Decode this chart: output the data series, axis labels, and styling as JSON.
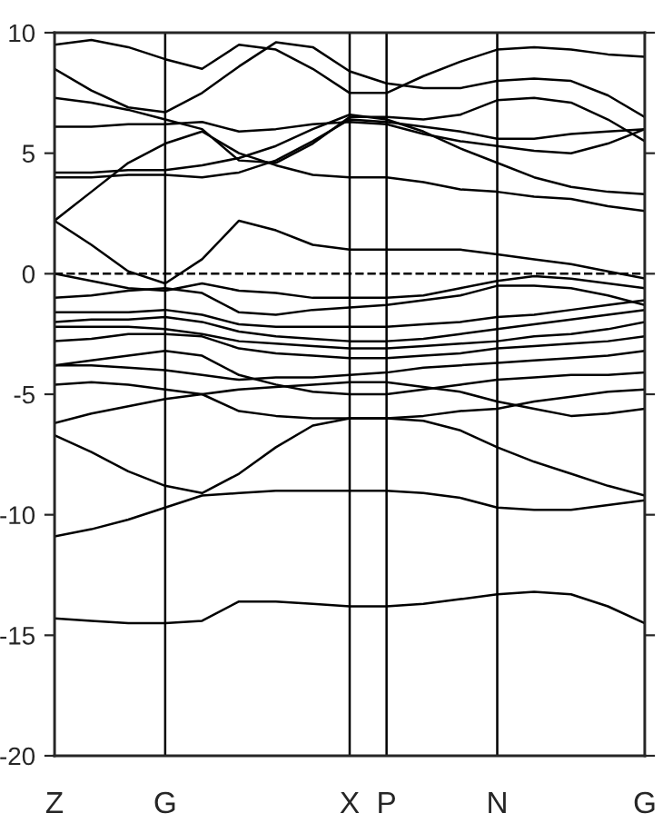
{
  "chart_data": {
    "type": "line",
    "categories": [
      "Z",
      null,
      null,
      "G",
      null,
      null,
      null,
      null,
      "X",
      "P",
      null,
      null,
      "N",
      null,
      null,
      null,
      "G"
    ],
    "ylim": [
      -20,
      10
    ],
    "yticks": [
      -20,
      -15,
      -10,
      -5,
      0,
      5,
      10
    ],
    "grid": "x",
    "ref_lines": [
      {
        "axis": "y",
        "value": 0,
        "color": "#000000",
        "line_style": "dashed"
      }
    ],
    "series": [
      {
        "color": "#000000",
        "values": [
          -14.3,
          -14.4,
          -14.5,
          -14.5,
          -14.4,
          -13.6,
          -13.6,
          -13.7,
          -13.8,
          -13.8,
          -13.7,
          -13.5,
          -13.3,
          -13.2,
          -13.3,
          -13.8,
          -14.5
        ]
      },
      {
        "color": "#000000",
        "values": [
          -10.9,
          -10.6,
          -10.2,
          -9.7,
          -9.2,
          -9.1,
          -9.0,
          -9.0,
          -9.0,
          -9.0,
          -9.1,
          -9.3,
          -9.7,
          -9.8,
          -9.8,
          -9.6,
          -9.4
        ]
      },
      {
        "color": "#000000",
        "values": [
          -6.7,
          -7.4,
          -8.2,
          -8.8,
          -9.1,
          -8.3,
          -7.2,
          -6.3,
          -6.0,
          -6.0,
          -6.1,
          -6.5,
          -7.2,
          -7.8,
          -8.3,
          -8.8,
          -9.2
        ]
      },
      {
        "color": "#000000",
        "values": [
          -6.2,
          -5.8,
          -5.5,
          -5.2,
          -5.0,
          -4.8,
          -4.7,
          -4.6,
          -4.5,
          -4.5,
          -4.7,
          -4.9,
          -5.3,
          -5.6,
          -5.9,
          -5.8,
          -5.6
        ]
      },
      {
        "color": "#000000",
        "values": [
          -4.6,
          -4.5,
          -4.6,
          -4.8,
          -5.0,
          -5.7,
          -5.9,
          -6.0,
          -6.0,
          -6.0,
          -5.9,
          -5.7,
          -5.6,
          -5.3,
          -5.1,
          -4.9,
          -4.8
        ]
      },
      {
        "color": "#000000",
        "values": [
          -3.8,
          -3.6,
          -3.4,
          -3.2,
          -3.4,
          -4.2,
          -4.6,
          -4.9,
          -5.0,
          -5.0,
          -4.8,
          -4.6,
          -4.4,
          -4.3,
          -4.2,
          -4.2,
          -4.1
        ]
      },
      {
        "color": "#000000",
        "values": [
          -3.8,
          -3.8,
          -3.9,
          -4.0,
          -4.2,
          -4.4,
          -4.3,
          -4.3,
          -4.2,
          -4.1,
          -3.9,
          -3.8,
          -3.7,
          -3.6,
          -3.5,
          -3.4,
          -3.2
        ]
      },
      {
        "color": "#000000",
        "values": [
          -2.8,
          -2.7,
          -2.5,
          -2.5,
          -2.6,
          -3.1,
          -3.3,
          -3.4,
          -3.5,
          -3.5,
          -3.4,
          -3.3,
          -3.1,
          -3.0,
          -2.9,
          -2.8,
          -2.6
        ]
      },
      {
        "color": "#000000",
        "values": [
          -2.2,
          -2.2,
          -2.2,
          -2.3,
          -2.5,
          -2.8,
          -2.9,
          -3.0,
          -3.1,
          -3.1,
          -3.0,
          -2.9,
          -2.8,
          -2.6,
          -2.5,
          -2.3,
          -2.0
        ]
      },
      {
        "color": "#000000",
        "values": [
          -2.0,
          -1.9,
          -1.9,
          -1.8,
          -2.0,
          -2.4,
          -2.6,
          -2.7,
          -2.8,
          -2.8,
          -2.7,
          -2.5,
          -2.3,
          -2.1,
          -1.9,
          -1.7,
          -1.5
        ]
      },
      {
        "color": "#000000",
        "values": [
          -1.6,
          -1.6,
          -1.6,
          -1.5,
          -1.7,
          -2.1,
          -2.2,
          -2.2,
          -2.2,
          -2.2,
          -2.1,
          -2.0,
          -1.8,
          -1.7,
          -1.5,
          -1.3,
          -1.1
        ]
      },
      {
        "color": "#000000",
        "values": [
          -1.0,
          -0.9,
          -0.7,
          -0.6,
          -0.8,
          -1.6,
          -1.7,
          -1.5,
          -1.4,
          -1.3,
          -1.1,
          -0.9,
          -0.5,
          -0.5,
          -0.6,
          -0.9,
          -1.3
        ]
      },
      {
        "color": "#000000",
        "values": [
          0.0,
          -0.3,
          -0.6,
          -0.7,
          -0.4,
          -0.7,
          -0.8,
          -1.0,
          -1.0,
          -1.0,
          -0.9,
          -0.6,
          -0.3,
          -0.1,
          -0.2,
          -0.4,
          -0.6
        ]
      },
      {
        "color": "#000000",
        "values": [
          2.2,
          1.2,
          0.1,
          -0.4,
          0.6,
          2.2,
          1.8,
          1.2,
          1.0,
          1.0,
          1.0,
          1.0,
          0.8,
          0.6,
          0.4,
          0.1,
          -0.2
        ]
      },
      {
        "color": "#000000",
        "values": [
          2.2,
          3.4,
          4.6,
          5.4,
          5.9,
          5.0,
          4.5,
          4.1,
          4.0,
          4.0,
          3.8,
          3.5,
          3.4,
          3.2,
          3.1,
          2.8,
          2.6
        ]
      },
      {
        "color": "#000000",
        "values": [
          4.0,
          4.0,
          4.1,
          4.1,
          4.0,
          4.2,
          4.7,
          5.5,
          6.4,
          6.3,
          6.1,
          5.9,
          5.6,
          5.6,
          5.8,
          5.9,
          6.0
        ]
      },
      {
        "color": "#000000",
        "values": [
          4.2,
          4.2,
          4.3,
          4.3,
          4.5,
          4.8,
          5.3,
          6.0,
          6.6,
          6.4,
          5.9,
          5.2,
          4.6,
          4.0,
          3.6,
          3.4,
          3.3
        ]
      },
      {
        "color": "#000000",
        "values": [
          6.1,
          6.1,
          6.2,
          6.2,
          6.3,
          5.9,
          6.0,
          6.2,
          6.3,
          6.2,
          5.8,
          5.5,
          5.3,
          5.1,
          5.0,
          5.4,
          6.0
        ]
      },
      {
        "color": "#000000",
        "values": [
          7.3,
          7.1,
          6.8,
          6.4,
          6.0,
          4.7,
          4.6,
          5.4,
          6.5,
          6.5,
          6.4,
          6.6,
          7.2,
          7.3,
          7.1,
          6.4,
          5.5
        ]
      },
      {
        "color": "#000000",
        "values": [
          8.5,
          7.6,
          6.9,
          6.7,
          7.5,
          8.6,
          9.6,
          9.4,
          8.4,
          7.9,
          7.7,
          7.7,
          8.0,
          8.1,
          8.0,
          7.4,
          6.5
        ]
      },
      {
        "color": "#000000",
        "values": [
          9.5,
          9.7,
          9.4,
          8.9,
          8.5,
          9.5,
          9.3,
          8.5,
          7.5,
          7.5,
          8.2,
          8.8,
          9.3,
          9.4,
          9.3,
          9.1,
          9.0
        ]
      }
    ]
  }
}
